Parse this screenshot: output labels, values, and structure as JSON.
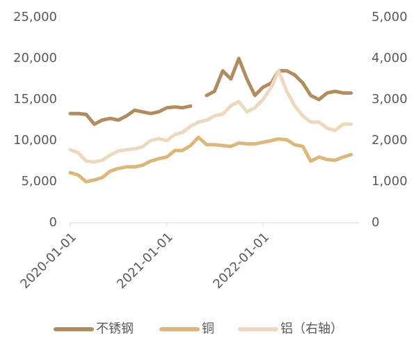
{
  "chart_data": {
    "type": "line",
    "x": [
      "2020-01-01",
      "2020-02-01",
      "2020-03-01",
      "2020-04-01",
      "2020-05-01",
      "2020-06-01",
      "2020-07-01",
      "2020-08-01",
      "2020-09-01",
      "2020-10-01",
      "2020-11-01",
      "2020-12-01",
      "2021-01-01",
      "2021-02-01",
      "2021-03-01",
      "2021-04-01",
      "2021-05-01",
      "2021-06-01",
      "2021-07-01",
      "2021-08-01",
      "2021-09-01",
      "2021-10-01",
      "2021-11-01",
      "2021-12-01",
      "2022-01-01",
      "2022-02-01",
      "2022-03-01",
      "2022-04-01",
      "2022-05-01",
      "2022-06-01",
      "2022-07-01",
      "2022-08-01",
      "2022-09-01",
      "2022-10-01",
      "2022-11-01",
      "2022-12-01"
    ],
    "series": [
      {
        "name": "不锈钢",
        "color": "#b08d60",
        "axis": "y",
        "values": [
          13300,
          13300,
          13200,
          12000,
          12500,
          12700,
          12500,
          13000,
          13700,
          13500,
          13300,
          13500,
          14000,
          14100,
          14000,
          14200,
          null,
          15500,
          16000,
          18500,
          17500,
          20000,
          17500,
          15500,
          16500,
          17000,
          18500,
          18500,
          18000,
          17000,
          15500,
          15000,
          15800,
          16000,
          15800,
          15800
        ]
      },
      {
        "name": "铜",
        "color": "#dcb67c",
        "axis": "y",
        "values": [
          6100,
          5800,
          5000,
          5200,
          5500,
          6300,
          6600,
          6800,
          6800,
          7000,
          7500,
          7800,
          8000,
          8800,
          8800,
          9400,
          10400,
          9500,
          9500,
          9400,
          9300,
          9700,
          9600,
          9600,
          9800,
          10000,
          10200,
          10100,
          9500,
          9300,
          7500,
          8000,
          7700,
          7600,
          8000,
          8300
        ]
      },
      {
        "name": "铝（右轴）",
        "color": "#ecd9bf",
        "axis": "y2",
        "values": [
          1780,
          1700,
          1500,
          1480,
          1520,
          1650,
          1750,
          1780,
          1800,
          1850,
          2000,
          2050,
          2000,
          2150,
          2200,
          2350,
          2450,
          2500,
          2600,
          2650,
          2850,
          2950,
          2700,
          2800,
          3000,
          3300,
          3700,
          3200,
          2850,
          2600,
          2450,
          2450,
          2300,
          2250,
          2400,
          2400
        ]
      }
    ],
    "xlim": [
      "2020-01-01",
      "2022-12-31"
    ],
    "xticks": [
      "2020-01-01",
      "2021-01-01",
      "2022-01-01"
    ],
    "ylim": [
      0,
      25000
    ],
    "yticks": [
      0,
      {
        "value": 5000,
        "label": "5,000"
      },
      {
        "value": 10000,
        "label": "10,000"
      },
      {
        "value": 15000,
        "label": "15,000"
      },
      {
        "value": 20000,
        "label": "20,000"
      },
      {
        "value": 25000,
        "label": "25,000"
      }
    ],
    "y2lim": [
      0,
      5000
    ],
    "y2ticks": [
      0,
      {
        "value": 1000,
        "label": "1,000"
      },
      {
        "value": 2000,
        "label": "2,000"
      },
      {
        "value": 3000,
        "label": "3,000"
      },
      {
        "value": 4000,
        "label": "4,000"
      },
      {
        "value": 5000,
        "label": "5,000"
      }
    ],
    "legend": "bottom"
  }
}
